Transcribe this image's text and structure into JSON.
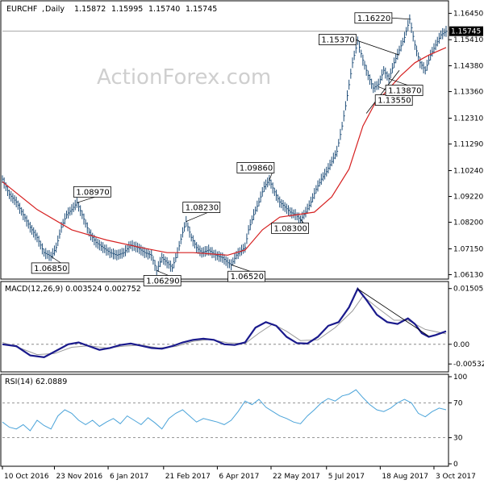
{
  "chart_data": {
    "type": "line",
    "main": {
      "symbol": "EURCHF",
      "period": "Daily",
      "ohlc": [
        "1.15872",
        "1.15995",
        "1.15740",
        "1.15745"
      ],
      "current_price": "1.15745",
      "ylim": [
        1.0605,
        1.1685
      ],
      "y_ticks": [
        "1.16450",
        "1.15410",
        "1.14380",
        "1.13360",
        "1.12310",
        "1.11290",
        "1.10240",
        "1.09220",
        "1.08200",
        "1.07150",
        "1.06130"
      ],
      "y_tick_values": [
        1.1645,
        1.1541,
        1.1438,
        1.1336,
        1.1231,
        1.1129,
        1.1024,
        1.0922,
        1.082,
        1.0715,
        1.0613
      ],
      "price_series": [
        [
          0,
          1.099
        ],
        [
          4,
          1.093
        ],
        [
          8,
          1.09
        ],
        [
          12,
          1.085
        ],
        [
          16,
          1.08
        ],
        [
          20,
          1.076
        ],
        [
          24,
          1.07
        ],
        [
          28,
          1.0685
        ],
        [
          31,
          1.072
        ],
        [
          34,
          1.08
        ],
        [
          37,
          1.085
        ],
        [
          40,
          1.087
        ],
        [
          43,
          1.0897
        ],
        [
          46,
          1.085
        ],
        [
          50,
          1.078
        ],
        [
          54,
          1.074
        ],
        [
          58,
          1.072
        ],
        [
          62,
          1.07
        ],
        [
          66,
          1.069
        ],
        [
          70,
          1.07
        ],
        [
          74,
          1.073
        ],
        [
          78,
          1.072
        ],
        [
          82,
          1.07
        ],
        [
          86,
          1.069
        ],
        [
          89,
          1.0629
        ],
        [
          92,
          1.068
        ],
        [
          95,
          1.066
        ],
        [
          98,
          1.064
        ],
        [
          101,
          1.07
        ],
        [
          104,
          1.078
        ],
        [
          106,
          1.0823
        ],
        [
          109,
          1.076
        ],
        [
          112,
          1.072
        ],
        [
          115,
          1.07
        ],
        [
          119,
          1.071
        ],
        [
          123,
          1.069
        ],
        [
          127,
          1.068
        ],
        [
          130,
          1.066
        ],
        [
          132,
          1.0652
        ],
        [
          135,
          1.069
        ],
        [
          138,
          1.071
        ],
        [
          140,
          1.072
        ],
        [
          142,
          1.079
        ],
        [
          145,
          1.085
        ],
        [
          148,
          1.09
        ],
        [
          151,
          1.096
        ],
        [
          154,
          1.0986
        ],
        [
          157,
          1.094
        ],
        [
          160,
          1.09
        ],
        [
          163,
          1.088
        ],
        [
          166,
          1.086
        ],
        [
          169,
          1.085
        ],
        [
          172,
          1.083
        ],
        [
          175,
          1.086
        ],
        [
          178,
          1.09
        ],
        [
          181,
          1.095
        ],
        [
          184,
          1.099
        ],
        [
          187,
          1.102
        ],
        [
          190,
          1.106
        ],
        [
          193,
          1.11
        ],
        [
          196,
          1.12
        ],
        [
          199,
          1.132
        ],
        [
          202,
          1.145
        ],
        [
          205,
          1.1537
        ],
        [
          208,
          1.146
        ],
        [
          211,
          1.14
        ],
        [
          214,
          1.135
        ],
        [
          217,
          1.1365
        ],
        [
          220,
          1.142
        ],
        [
          223,
          1.1387
        ],
        [
          226,
          1.145
        ],
        [
          229,
          1.15
        ],
        [
          232,
          1.155
        ],
        [
          235,
          1.1622
        ],
        [
          238,
          1.152
        ],
        [
          241,
          1.145
        ],
        [
          244,
          1.142
        ],
        [
          247,
          1.148
        ],
        [
          250,
          1.152
        ],
        [
          253,
          1.156
        ],
        [
          256,
          1.1574
        ]
      ],
      "sma_series": [
        [
          0,
          1.098
        ],
        [
          20,
          1.087
        ],
        [
          40,
          1.079
        ],
        [
          60,
          1.075
        ],
        [
          80,
          1.072
        ],
        [
          95,
          1.07
        ],
        [
          110,
          1.07
        ],
        [
          130,
          1.069
        ],
        [
          140,
          1.071
        ],
        [
          150,
          1.079
        ],
        [
          160,
          1.084
        ],
        [
          170,
          1.085
        ],
        [
          180,
          1.086
        ],
        [
          190,
          1.092
        ],
        [
          200,
          1.103
        ],
        [
          208,
          1.12
        ],
        [
          215,
          1.129
        ],
        [
          222,
          1.134
        ],
        [
          230,
          1.14
        ],
        [
          238,
          1.145
        ],
        [
          246,
          1.148
        ],
        [
          256,
          1.151
        ]
      ],
      "annotations": [
        {
          "text": "1.08970",
          "x": 43,
          "y": 1.0897
        },
        {
          "text": "1.06850",
          "x": 28,
          "y": 1.0685
        },
        {
          "text": "1.06290",
          "x": 89,
          "y": 1.0629
        },
        {
          "text": "1.08230",
          "x": 106,
          "y": 1.0823
        },
        {
          "text": "1.06520",
          "x": 132,
          "y": 1.0652
        },
        {
          "text": "1.09860",
          "x": 154,
          "y": 1.0986
        },
        {
          "text": "1.08300",
          "x": 172,
          "y": 1.083
        },
        {
          "text": "1.15370",
          "x": 205,
          "y": 1.1537
        },
        {
          "text": "1.13550",
          "x": 217,
          "y": 1.1355
        },
        {
          "text": "1.13870",
          "x": 223,
          "y": 1.1387
        },
        {
          "text": "1.16220",
          "x": 235,
          "y": 1.1622
        }
      ],
      "watermark": "ActionForex.com"
    },
    "macd": {
      "label": "MACD(12,26,9) 0.003524 0.002752",
      "ylim": [
        -0.0068,
        0.0163
      ],
      "y_ticks": [
        "0.015052",
        "0.00",
        "-0.005321"
      ],
      "y_tick_values": [
        0.015052,
        0.0,
        -0.005321
      ],
      "macd_series": [
        [
          0,
          0.0
        ],
        [
          8,
          -0.0005
        ],
        [
          16,
          -0.003
        ],
        [
          24,
          -0.0035
        ],
        [
          30,
          -0.002
        ],
        [
          38,
          0.0
        ],
        [
          44,
          0.0005
        ],
        [
          50,
          -0.0005
        ],
        [
          56,
          -0.0015
        ],
        [
          62,
          -0.001
        ],
        [
          68,
          -0.0002
        ],
        [
          74,
          0.0002
        ],
        [
          80,
          -0.0004
        ],
        [
          86,
          -0.001
        ],
        [
          92,
          -0.0012
        ],
        [
          98,
          -0.0005
        ],
        [
          104,
          0.0005
        ],
        [
          110,
          0.0012
        ],
        [
          116,
          0.0015
        ],
        [
          122,
          0.0012
        ],
        [
          128,
          0.0
        ],
        [
          134,
          -0.0002
        ],
        [
          140,
          0.0005
        ],
        [
          146,
          0.0045
        ],
        [
          152,
          0.006
        ],
        [
          158,
          0.005
        ],
        [
          164,
          0.002
        ],
        [
          170,
          0.0003
        ],
        [
          176,
          0.0002
        ],
        [
          182,
          0.002
        ],
        [
          188,
          0.005
        ],
        [
          194,
          0.006
        ],
        [
          200,
          0.01
        ],
        [
          205,
          0.015
        ],
        [
          210,
          0.012
        ],
        [
          216,
          0.008
        ],
        [
          222,
          0.006
        ],
        [
          228,
          0.0055
        ],
        [
          234,
          0.007
        ],
        [
          238,
          0.0055
        ],
        [
          242,
          0.003
        ],
        [
          246,
          0.002
        ],
        [
          250,
          0.0025
        ],
        [
          256,
          0.0035
        ]
      ],
      "signal_series": [
        [
          0,
          0.0005
        ],
        [
          10,
          -0.001
        ],
        [
          20,
          -0.0028
        ],
        [
          30,
          -0.0025
        ],
        [
          40,
          -0.0008
        ],
        [
          50,
          -0.0004
        ],
        [
          60,
          -0.001
        ],
        [
          70,
          -0.0005
        ],
        [
          80,
          -0.0002
        ],
        [
          90,
          -0.001
        ],
        [
          100,
          -0.0006
        ],
        [
          110,
          0.0008
        ],
        [
          120,
          0.0013
        ],
        [
          130,
          0.0004
        ],
        [
          140,
          0.0002
        ],
        [
          148,
          0.003
        ],
        [
          156,
          0.0055
        ],
        [
          164,
          0.0035
        ],
        [
          172,
          0.001
        ],
        [
          182,
          0.0012
        ],
        [
          192,
          0.0045
        ],
        [
          202,
          0.009
        ],
        [
          208,
          0.013
        ],
        [
          216,
          0.01
        ],
        [
          226,
          0.0065
        ],
        [
          234,
          0.0065
        ],
        [
          244,
          0.004
        ],
        [
          256,
          0.0028
        ]
      ]
    },
    "rsi": {
      "label": "RSI(14) 62.0889",
      "ylim": [
        0,
        100
      ],
      "y_ticks": [
        "100",
        "70",
        "30",
        "0"
      ],
      "y_tick_values": [
        100,
        70,
        30,
        0
      ],
      "levels": [
        70,
        30
      ],
      "rsi_series": [
        [
          0,
          48
        ],
        [
          4,
          42
        ],
        [
          8,
          40
        ],
        [
          12,
          45
        ],
        [
          16,
          38
        ],
        [
          20,
          50
        ],
        [
          24,
          44
        ],
        [
          28,
          40
        ],
        [
          32,
          55
        ],
        [
          36,
          62
        ],
        [
          40,
          58
        ],
        [
          44,
          50
        ],
        [
          48,
          45
        ],
        [
          52,
          50
        ],
        [
          56,
          43
        ],
        [
          60,
          48
        ],
        [
          64,
          52
        ],
        [
          68,
          46
        ],
        [
          72,
          55
        ],
        [
          76,
          50
        ],
        [
          80,
          45
        ],
        [
          84,
          53
        ],
        [
          88,
          47
        ],
        [
          92,
          40
        ],
        [
          96,
          52
        ],
        [
          100,
          58
        ],
        [
          104,
          62
        ],
        [
          108,
          55
        ],
        [
          112,
          48
        ],
        [
          116,
          52
        ],
        [
          120,
          50
        ],
        [
          124,
          48
        ],
        [
          128,
          45
        ],
        [
          132,
          50
        ],
        [
          136,
          60
        ],
        [
          140,
          72
        ],
        [
          144,
          68
        ],
        [
          148,
          74
        ],
        [
          152,
          65
        ],
        [
          156,
          60
        ],
        [
          160,
          55
        ],
        [
          164,
          52
        ],
        [
          168,
          48
        ],
        [
          172,
          46
        ],
        [
          176,
          55
        ],
        [
          180,
          62
        ],
        [
          184,
          70
        ],
        [
          188,
          75
        ],
        [
          192,
          72
        ],
        [
          196,
          78
        ],
        [
          200,
          80
        ],
        [
          204,
          85
        ],
        [
          208,
          76
        ],
        [
          212,
          68
        ],
        [
          216,
          62
        ],
        [
          220,
          60
        ],
        [
          224,
          64
        ],
        [
          228,
          70
        ],
        [
          232,
          74
        ],
        [
          236,
          70
        ],
        [
          240,
          58
        ],
        [
          244,
          54
        ],
        [
          248,
          60
        ],
        [
          252,
          64
        ],
        [
          256,
          62
        ]
      ]
    },
    "x_ticks": [
      "10 Oct 2016",
      "23 Nov 2016",
      "6 Jan 2017",
      "21 Feb 2017",
      "6 Apr 2017",
      "22 May 2017",
      "5 Jul 2017",
      "18 Aug 2017",
      "3 Oct 2017"
    ],
    "x_tick_positions": [
      0,
      30,
      61,
      93,
      124,
      155,
      187,
      218,
      249
    ],
    "x_range": [
      0,
      256
    ],
    "colors": {
      "price": "#1f4e79",
      "sma": "#d62020",
      "macd": "#1a1a8c",
      "signal": "#9a9a9a",
      "rsi": "#4aa3d9",
      "guide": "#777777",
      "current_line": "#999999"
    }
  }
}
